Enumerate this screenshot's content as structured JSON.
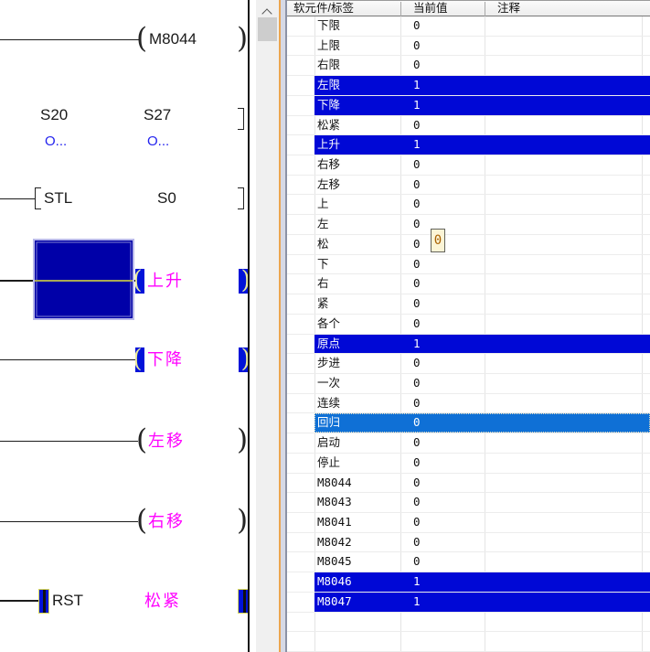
{
  "ladder": {
    "rung1_coil": "M8044",
    "steps": [
      {
        "name": "S20",
        "note": "O..."
      },
      {
        "name": "S27",
        "note": "O..."
      }
    ],
    "stl": {
      "op": "STL",
      "operand": "S0"
    },
    "coils": {
      "up": "上升",
      "down": "下降",
      "left": "左移",
      "right": "右移"
    },
    "rst": {
      "op": "RST",
      "operand": "松紧"
    }
  },
  "watch_table": {
    "columns": [
      "软元件/标签",
      "当前值",
      "注释"
    ],
    "rows": [
      {
        "device": "下限",
        "value": "0",
        "comment": "",
        "state": "off"
      },
      {
        "device": "上限",
        "value": "0",
        "comment": "",
        "state": "off"
      },
      {
        "device": "右限",
        "value": "0",
        "comment": "",
        "state": "off"
      },
      {
        "device": "左限",
        "value": "1",
        "comment": "",
        "state": "on"
      },
      {
        "device": "下降",
        "value": "1",
        "comment": "",
        "state": "on"
      },
      {
        "device": "松紧",
        "value": "0",
        "comment": "",
        "state": "off"
      },
      {
        "device": "上升",
        "value": "1",
        "comment": "",
        "state": "on"
      },
      {
        "device": "右移",
        "value": "0",
        "comment": "",
        "state": "off"
      },
      {
        "device": "左移",
        "value": "0",
        "comment": "",
        "state": "off"
      },
      {
        "device": "上",
        "value": "0",
        "comment": "",
        "state": "off"
      },
      {
        "device": "左",
        "value": "0",
        "comment": "",
        "state": "off"
      },
      {
        "device": "松",
        "value": "0",
        "comment": "",
        "state": "off"
      },
      {
        "device": "下",
        "value": "0",
        "comment": "",
        "state": "off"
      },
      {
        "device": "右",
        "value": "0",
        "comment": "",
        "state": "off"
      },
      {
        "device": "紧",
        "value": "0",
        "comment": "",
        "state": "off"
      },
      {
        "device": "各个",
        "value": "0",
        "comment": "",
        "state": "off"
      },
      {
        "device": "原点",
        "value": "1",
        "comment": "",
        "state": "on"
      },
      {
        "device": "步进",
        "value": "0",
        "comment": "",
        "state": "off"
      },
      {
        "device": "一次",
        "value": "0",
        "comment": "",
        "state": "off"
      },
      {
        "device": "连续",
        "value": "0",
        "comment": "",
        "state": "off"
      },
      {
        "device": "回归",
        "value": "0",
        "comment": "",
        "state": "selected"
      },
      {
        "device": "启动",
        "value": "0",
        "comment": "",
        "state": "off"
      },
      {
        "device": "停止",
        "value": "0",
        "comment": "",
        "state": "off"
      },
      {
        "device": "M8044",
        "value": "0",
        "comment": "",
        "state": "off"
      },
      {
        "device": "M8043",
        "value": "0",
        "comment": "",
        "state": "off"
      },
      {
        "device": "M8041",
        "value": "0",
        "comment": "",
        "state": "off"
      },
      {
        "device": "M8042",
        "value": "0",
        "comment": "",
        "state": "off"
      },
      {
        "device": "M8045",
        "value": "0",
        "comment": "",
        "state": "off"
      },
      {
        "device": "M8046",
        "value": "1",
        "comment": "",
        "state": "on"
      },
      {
        "device": "M8047",
        "value": "1",
        "comment": "",
        "state": "on"
      },
      {
        "device": "",
        "value": "",
        "comment": "",
        "state": "off"
      },
      {
        "device": "",
        "value": "",
        "comment": "",
        "state": "off"
      }
    ],
    "tooltip_value": "0"
  },
  "colors": {
    "row_on_highlight": "#0008d6",
    "row_selected_highlight": "#0f70d6",
    "coil_label_text": "#ff00ff",
    "step_note_text": "#2222ee",
    "selection_block": "#0000a8",
    "energized_symbol_block": "#0013d9",
    "tooltip_background": "#fbf4d6",
    "tooltip_text": "#a86000"
  }
}
